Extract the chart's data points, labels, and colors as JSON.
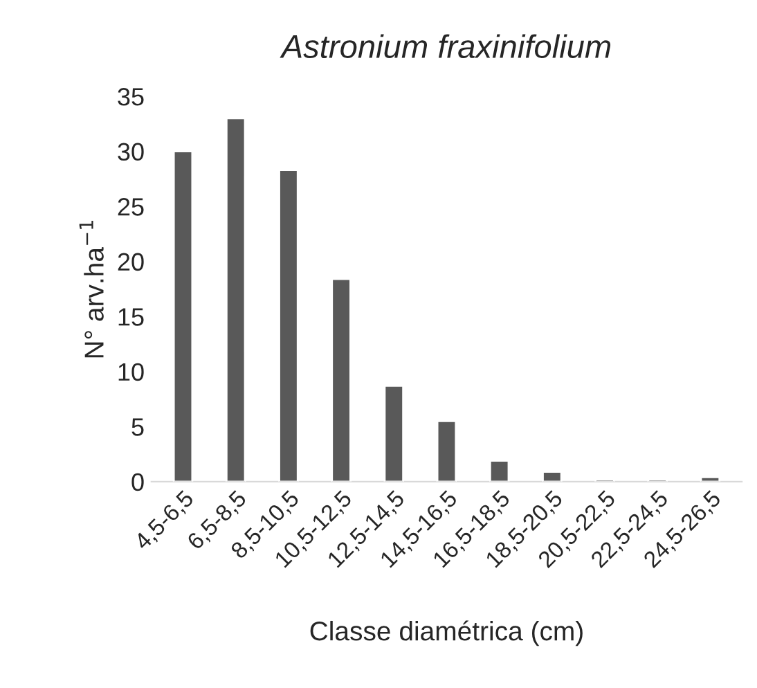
{
  "chart_data": {
    "type": "bar",
    "title": "Astronium fraxinifolium",
    "xlabel": "Classe diamétrica (cm)",
    "ylabel": "N° arv.ha$^{−1}$",
    "categories": [
      "4,5-6,5",
      "6,5-8,5",
      "8,5-10,5",
      "10,5-12,5",
      "12,5-14,5",
      "14,5-16,5",
      "16,5-18,5",
      "18,5-20,5",
      "20,5-22,5",
      "22,5-24,5",
      "24,5-26,5"
    ],
    "values": [
      30,
      33,
      28.3,
      18.4,
      8.7,
      5.5,
      1.9,
      0.9,
      0.2,
      0.2,
      0.4
    ],
    "color": "#595959",
    "ylim": [
      0,
      35
    ],
    "yticks": [
      0,
      5,
      10,
      15,
      20,
      25,
      30,
      35
    ],
    "grid": false
  }
}
